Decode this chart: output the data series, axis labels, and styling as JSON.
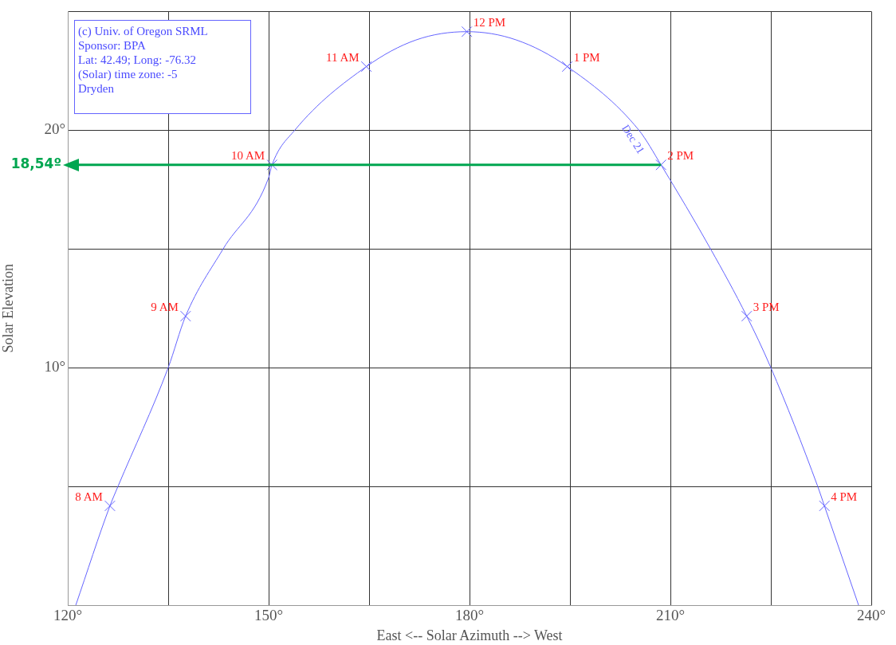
{
  "chart_data": {
    "type": "line",
    "xlabel": "East <-- Solar Azimuth --> West",
    "ylabel": "Solar Elevation",
    "annotations": [
      "(c) Univ. of Oregon SRML",
      "Sponsor: BPA",
      "Lat: 42.49; Long: -76.32",
      "(Solar) time zone: -5",
      "Dryden",
      {
        "text": "8 AM",
        "x": 126.3,
        "y": 4.18
      },
      {
        "text": "9 AM",
        "x": 137.6,
        "y": 12.17
      },
      {
        "text": "10 AM",
        "x": 150.5,
        "y": 18.54
      },
      {
        "text": "11 AM",
        "x": 164.6,
        "y": 22.68
      },
      {
        "text": "12 PM",
        "x": 179.6,
        "y": 24.15
      },
      {
        "text": "1 PM",
        "x": 194.6,
        "y": 22.68
      },
      {
        "text": "2 PM",
        "x": 208.6,
        "y": 18.54
      },
      {
        "text": "3 PM",
        "x": 221.4,
        "y": 12.17
      },
      {
        "text": "4 PM",
        "x": 233,
        "y": 4.18
      }
    ],
    "xlim": [
      120,
      240
    ],
    "ylim": [
      0,
      25
    ],
    "xticks": [
      {
        "value": 120,
        "label": "120°"
      },
      {
        "value": 135,
        "label": null
      },
      {
        "value": 150,
        "label": "150°"
      },
      {
        "value": 165,
        "label": null
      },
      {
        "value": 180,
        "label": "180°"
      },
      {
        "value": 195,
        "label": null
      },
      {
        "value": 210,
        "label": "210°"
      },
      {
        "value": 225,
        "label": null
      },
      {
        "value": 240,
        "label": "240°"
      }
    ],
    "yticks": [
      {
        "value": 0,
        "label": null
      },
      {
        "value": 5,
        "label": null
      },
      {
        "value": 10,
        "label": "10°"
      },
      {
        "value": 15,
        "label": null
      },
      {
        "value": 20,
        "label": "20°"
      },
      {
        "value": 25,
        "label": null
      }
    ],
    "grid": true,
    "series": [
      {
        "name": "Dec 21",
        "color": "#6464ff",
        "marker": "none",
        "x": [
          121.2,
          126.3,
          127.5,
          135,
          137.6,
          143.2,
          150,
          150.5,
          153.9,
          164.6,
          172,
          179.6,
          187,
          194.6,
          205.3,
          208.6,
          216,
          221.4,
          225,
          232,
          233,
          238.1
        ],
        "values": [
          0,
          4.18,
          5,
          10,
          12.17,
          15,
          18,
          18.54,
          20,
          22.68,
          23.8,
          24.15,
          23.8,
          22.68,
          20,
          18.54,
          15,
          12.17,
          10,
          5,
          4.18,
          0
        ]
      },
      {
        "type": "scatter",
        "color": "#6464ff",
        "marker": "cross",
        "x": [
          126.3,
          137.6,
          150.5,
          164.6,
          179.6,
          194.6,
          208.6,
          221.4,
          233
        ],
        "values": [
          4.18,
          12.17,
          18.54,
          22.68,
          24.15,
          22.68,
          18.54,
          12.17,
          4.18
        ]
      }
    ],
    "ref_lines": [
      {
        "axis": "y",
        "value": 18.54,
        "label": "18,54º",
        "color": "#00a650"
      }
    ]
  }
}
